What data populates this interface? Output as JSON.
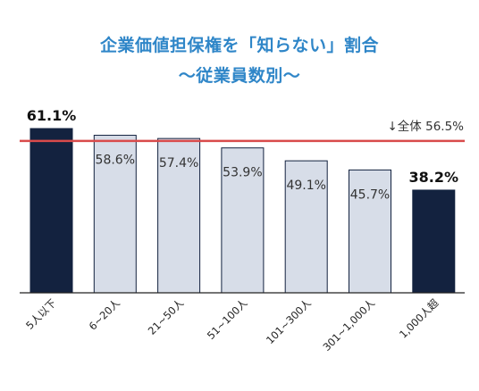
{
  "chart_data": {
    "type": "bar",
    "title": "企業価値担保権を「知らない」割合",
    "subtitle": "～従業員数別～",
    "categories": [
      "5人以下",
      "6~20人",
      "21~50人",
      "51~100人",
      "101~300人",
      "301~1,000人",
      "1,000人超"
    ],
    "values": [
      61.1,
      58.6,
      57.4,
      53.9,
      49.1,
      45.7,
      38.2
    ],
    "value_labels": [
      "61.1%",
      "58.6%",
      "57.4%",
      "53.9%",
      "49.1%",
      "45.7%",
      "38.2%"
    ],
    "highlighted": [
      true,
      false,
      false,
      false,
      false,
      false,
      true
    ],
    "reference_line": {
      "value": 56.5,
      "label": "↓全体  56.5%"
    },
    "ylim": [
      0,
      62
    ],
    "colors": {
      "highlight_bar": "#13223f",
      "normal_bar": "#d7dde8",
      "bar_border": "#13223f",
      "reference_line": "#d94b4b",
      "title": "#2f86c8",
      "text": "#333333"
    },
    "xlabel": "",
    "ylabel": "",
    "grid": false,
    "legend": "none"
  }
}
